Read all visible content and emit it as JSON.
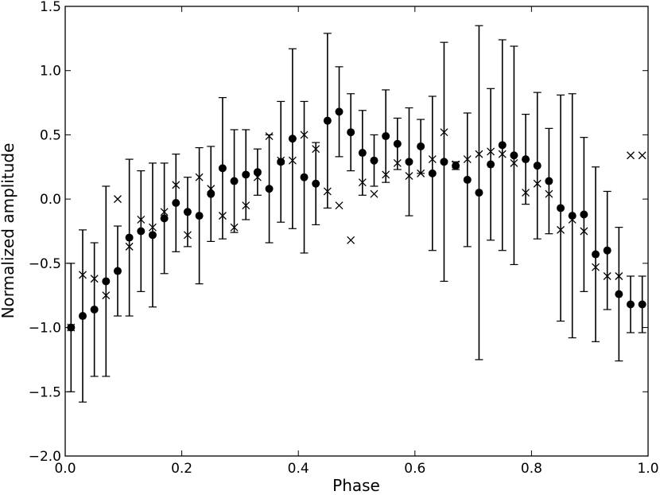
{
  "chart_data": {
    "type": "scatter",
    "title": "",
    "xlabel": "Phase",
    "ylabel": "Normalized amplitude",
    "xlim": [
      0.0,
      1.0
    ],
    "ylim": [
      -2.0,
      1.5
    ],
    "xticks": [
      0.0,
      0.2,
      0.4,
      0.6,
      0.8,
      1.0
    ],
    "xtick_labels": [
      "0.0",
      "0.2",
      "0.4",
      "0.6",
      "0.8",
      "1.0"
    ],
    "yticks": [
      -2.0,
      -1.5,
      -1.0,
      -0.5,
      0.0,
      0.5,
      1.0,
      1.5
    ],
    "ytick_labels": [
      "−2.0",
      "−1.5",
      "−1.0",
      "−0.5",
      "0.0",
      "0.5",
      "1.0",
      "1.5"
    ],
    "grid": false,
    "legend": "none",
    "colors": {
      "marks": "#000000",
      "background": "#ffffff"
    },
    "series": [
      {
        "marker": "circle",
        "x": [
          0.01,
          0.03,
          0.05,
          0.07,
          0.09,
          0.11,
          0.13,
          0.15,
          0.17,
          0.19,
          0.21,
          0.23,
          0.25,
          0.27,
          0.29,
          0.31,
          0.33,
          0.35,
          0.37,
          0.39,
          0.41,
          0.43,
          0.45,
          0.47,
          0.49,
          0.51,
          0.53,
          0.55,
          0.57,
          0.59,
          0.61,
          0.63,
          0.65,
          0.67,
          0.69,
          0.71,
          0.73,
          0.75,
          0.77,
          0.79,
          0.81,
          0.83,
          0.85,
          0.87,
          0.89,
          0.91,
          0.93,
          0.95,
          0.97,
          0.99
        ],
        "y": [
          -1.0,
          -0.91,
          -0.86,
          -0.64,
          -0.56,
          -0.3,
          -0.25,
          -0.28,
          -0.15,
          -0.03,
          -0.1,
          -0.13,
          0.04,
          0.24,
          0.14,
          0.19,
          0.21,
          0.08,
          0.29,
          0.47,
          0.17,
          0.12,
          0.61,
          0.68,
          0.52,
          0.36,
          0.3,
          0.49,
          0.43,
          0.29,
          0.41,
          0.2,
          0.29,
          0.26,
          0.15,
          0.05,
          0.27,
          0.42,
          0.34,
          0.31,
          0.26,
          0.14,
          -0.07,
          -0.13,
          -0.12,
          -0.43,
          -0.4,
          -0.74,
          -0.82,
          -0.82
        ],
        "err": [
          0.5,
          0.67,
          0.52,
          0.74,
          0.35,
          0.61,
          0.47,
          0.56,
          0.43,
          0.38,
          0.27,
          0.53,
          0.37,
          0.55,
          0.4,
          0.35,
          0.18,
          0.42,
          0.47,
          0.7,
          0.59,
          0.32,
          0.68,
          0.35,
          0.3,
          0.33,
          0.2,
          0.36,
          0.2,
          0.42,
          0.21,
          0.6,
          0.93,
          0.03,
          0.52,
          1.3,
          0.59,
          0.82,
          0.85,
          0.35,
          0.57,
          0.41,
          0.88,
          0.95,
          0.6,
          0.68,
          0.46,
          0.52,
          0.22,
          0.22
        ]
      },
      {
        "marker": "x",
        "x": [
          0.01,
          0.03,
          0.05,
          0.07,
          0.09,
          0.11,
          0.13,
          0.15,
          0.17,
          0.19,
          0.21,
          0.23,
          0.25,
          0.27,
          0.29,
          0.31,
          0.33,
          0.35,
          0.37,
          0.39,
          0.41,
          0.43,
          0.45,
          0.47,
          0.49,
          0.51,
          0.53,
          0.55,
          0.57,
          0.59,
          0.61,
          0.63,
          0.65,
          0.67,
          0.69,
          0.71,
          0.73,
          0.75,
          0.77,
          0.79,
          0.81,
          0.83,
          0.85,
          0.87,
          0.89,
          0.91,
          0.93,
          0.95,
          0.97,
          0.99
        ],
        "y": [
          -1.0,
          -0.59,
          -0.62,
          -0.75,
          0.0,
          -0.37,
          -0.16,
          -0.22,
          -0.1,
          0.11,
          -0.28,
          0.17,
          0.08,
          -0.13,
          -0.22,
          -0.05,
          0.17,
          0.49,
          0.3,
          0.3,
          0.5,
          0.39,
          0.06,
          -0.05,
          -0.32,
          0.13,
          0.04,
          0.19,
          0.28,
          0.18,
          0.2,
          0.31,
          0.52,
          0.27,
          0.31,
          0.35,
          0.37,
          0.35,
          0.28,
          0.05,
          0.12,
          0.04,
          -0.24,
          -0.16,
          -0.25,
          -0.53,
          -0.6,
          -0.6,
          0.34,
          0.34
        ]
      }
    ]
  }
}
